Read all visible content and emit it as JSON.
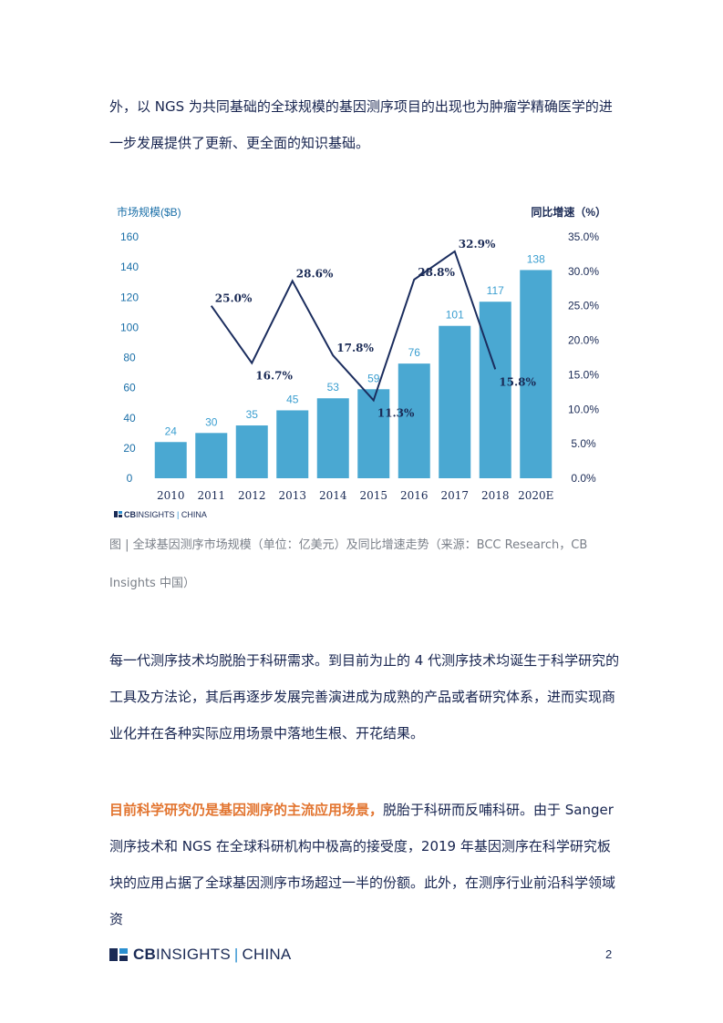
{
  "paragraph1": "外，以 NGS 为共同基础的全球规模的基因测序项目的出现也为肿瘤学精确医学的进一步发展提供了更新、更全面的知识基础。",
  "caption": "图 | 全球基因测序市场规模（单位：亿美元）及同比增速走势（来源：BCC Research，CB Insights 中国）",
  "paragraph2": "每一代测序技术均脱胎于科研需求。到目前为止的 4 代测序技术均诞生于科学研究的工具及方法论，其后再逐步发展完善演进成为成熟的产品或者研究体系，进而实现商业化并在各种实际应用场景中落地生根、开花结果。",
  "paragraph3_highlight": "目前科学研究仍是基因测序的主流应用场景，",
  "paragraph3_rest": "脱胎于科研而反哺科研。由于 Sanger 测序技术和 NGS 在全球科研机构中极高的接受度，2019 年基因测序在科学研究板块的应用占据了全球基因测序市场超过一半的份额。此外，在测序行业前沿科学领域资",
  "footer": {
    "logo_bold": "CB",
    "logo_main": "INSIGHTS",
    "logo_sep": "|",
    "logo_region": "CHINA",
    "page_number": "2"
  },
  "chart_watermark": {
    "bold": "CB",
    "main": "INSIGHTS",
    "sep": "|",
    "region": "CHINA"
  },
  "chart_data": {
    "type": "bar",
    "categories": [
      "2010",
      "2011",
      "2012",
      "2013",
      "2014",
      "2015",
      "2016",
      "2017",
      "2018",
      "2020E"
    ],
    "series": [
      {
        "values": [
          24,
          30,
          35,
          45,
          53,
          59,
          76,
          101,
          117,
          138
        ],
        "color": "#4aa8d2"
      }
    ],
    "line_series": [
      {
        "values": [
          null,
          25.0,
          16.7,
          28.6,
          17.8,
          11.3,
          28.8,
          32.9,
          15.8,
          null
        ],
        "labels": [
          "",
          "25.0%",
          "16.7%",
          "28.6%",
          "17.8%",
          "11.3%",
          "28.8%",
          "32.9%",
          "15.8%",
          ""
        ],
        "color": "#1b2d5e"
      }
    ],
    "ylabel": "市场规模($B)",
    "y2label": "同比增速（%）",
    "ylim": [
      0,
      160
    ],
    "y2lim": [
      0,
      35
    ],
    "yticks": [
      "0",
      "20",
      "40",
      "60",
      "80",
      "100",
      "120",
      "140",
      "160"
    ],
    "y2ticks": [
      "0.0%",
      "5.0%",
      "10.0%",
      "15.0%",
      "20.0%",
      "25.0%",
      "30.0%",
      "35.0%"
    ],
    "grid": false
  }
}
